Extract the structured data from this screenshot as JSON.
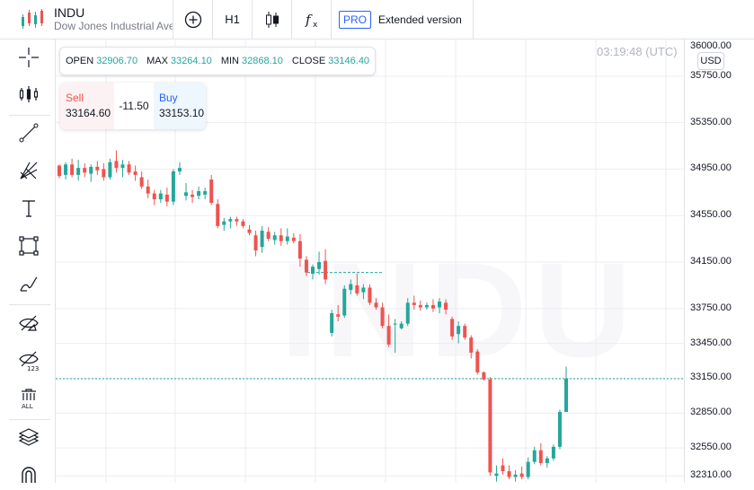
{
  "header": {
    "symbol": "INDU",
    "description": "Dow Jones Industrial Ave",
    "interval": "H1",
    "pro_badge": "PRO",
    "extended_label": "Extended version"
  },
  "toolbar_icons": [
    "crosshair-icon",
    "indicators-icon",
    "trendline-icon",
    "fib-icon",
    "text-icon",
    "rectangle-icon",
    "brush-icon",
    "hide-drawings-icon",
    "hide-indicators-icon",
    "remove-all-icon",
    "layers-icon",
    "magnet-icon"
  ],
  "ohlc": {
    "open_label": "OPEN",
    "open": "32906.70",
    "max_label": "MAX",
    "max": "33264.10",
    "min_label": "MIN",
    "min": "32868.10",
    "close_label": "CLOSE",
    "close": "33146.40"
  },
  "trade": {
    "sell_label": "Sell",
    "sell_price": "33164.60",
    "spread": "-11.50",
    "buy_label": "Buy",
    "buy_price": "33153.10"
  },
  "clock": "03:19:48 (UTC)",
  "currency": "USD",
  "watermark": "INDU",
  "colors": {
    "up": "#26a69a",
    "down": "#ef5350",
    "grid": "#ebedf1"
  },
  "price_axis": [
    "36000.00",
    "35750.00",
    "35350.00",
    "34950.00",
    "34550.00",
    "34150.00",
    "33750.00",
    "33450.00",
    "33150.00",
    "32850.00",
    "32550.00",
    "32310.00"
  ],
  "chart_data": {
    "type": "candlestick",
    "ylim": [
      32250,
      36050
    ],
    "current_price": 33146.4,
    "dashed_level": 34060,
    "candles": [
      [
        34980,
        34990,
        34870,
        34890
      ],
      [
        34900,
        35010,
        34860,
        34990
      ],
      [
        34990,
        35040,
        34880,
        34900
      ],
      [
        34900,
        35030,
        34850,
        34960
      ],
      [
        34960,
        35000,
        34880,
        34920
      ],
      [
        34910,
        34990,
        34840,
        34970
      ],
      [
        34970,
        35020,
        34900,
        34940
      ],
      [
        34950,
        35000,
        34850,
        34880
      ],
      [
        34880,
        35040,
        34860,
        35010
      ],
      [
        35020,
        35110,
        34920,
        34960
      ],
      [
        34960,
        35030,
        34880,
        34990
      ],
      [
        34990,
        35020,
        34900,
        34920
      ],
      [
        34930,
        34980,
        34850,
        34900
      ],
      [
        34880,
        34930,
        34780,
        34800
      ],
      [
        34800,
        34860,
        34700,
        34740
      ],
      [
        34740,
        34770,
        34640,
        34690
      ],
      [
        34690,
        34770,
        34660,
        34740
      ],
      [
        34730,
        34790,
        34630,
        34670
      ],
      [
        34670,
        34950,
        34640,
        34930
      ],
      [
        34930,
        35010,
        34900,
        34960
      ],
      [
        34720,
        34830,
        34680,
        34750
      ],
      [
        34730,
        34770,
        34660,
        34710
      ],
      [
        34720,
        34800,
        34690,
        34760
      ],
      [
        34730,
        34790,
        34690,
        34760
      ],
      [
        34860,
        34900,
        34640,
        34660
      ],
      [
        34650,
        34690,
        34440,
        34460
      ],
      [
        34470,
        34530,
        34420,
        34500
      ],
      [
        34500,
        34540,
        34440,
        34520
      ],
      [
        34520,
        34540,
        34460,
        34500
      ],
      [
        34500,
        34520,
        34440,
        34460
      ],
      [
        34430,
        34470,
        34380,
        34400
      ],
      [
        34380,
        34420,
        34200,
        34250
      ],
      [
        34280,
        34460,
        34230,
        34420
      ],
      [
        34410,
        34450,
        34330,
        34350
      ],
      [
        34340,
        34410,
        34300,
        34380
      ],
      [
        34380,
        34440,
        34290,
        34330
      ],
      [
        34330,
        34440,
        34300,
        34370
      ],
      [
        34360,
        34400,
        34310,
        34330
      ],
      [
        34330,
        34390,
        34110,
        34180
      ],
      [
        34170,
        34200,
        34030,
        34060
      ],
      [
        34050,
        34130,
        34000,
        34110
      ],
      [
        34090,
        34240,
        34040,
        34150
      ],
      [
        34160,
        34260,
        33960,
        34000
      ],
      [
        33540,
        33740,
        33510,
        33710
      ],
      [
        33700,
        33780,
        33640,
        33680
      ],
      [
        33690,
        33950,
        33670,
        33920
      ],
      [
        33910,
        34000,
        33870,
        33960
      ],
      [
        33950,
        34050,
        33860,
        33880
      ],
      [
        33890,
        33960,
        33830,
        33930
      ],
      [
        33930,
        33960,
        33780,
        33800
      ],
      [
        33800,
        33840,
        33740,
        33760
      ],
      [
        33760,
        33800,
        33580,
        33600
      ],
      [
        33600,
        33700,
        33420,
        33440
      ],
      [
        33620,
        33660,
        33370,
        33620
      ],
      [
        33580,
        33640,
        33570,
        33620
      ],
      [
        33620,
        33840,
        33600,
        33800
      ],
      [
        33800,
        33860,
        33740,
        33780
      ],
      [
        33780,
        33820,
        33730,
        33760
      ],
      [
        33760,
        33800,
        33740,
        33780
      ],
      [
        33780,
        33830,
        33720,
        33750
      ],
      [
        33760,
        33840,
        33710,
        33810
      ],
      [
        33800,
        33830,
        33700,
        33740
      ],
      [
        33660,
        33680,
        33480,
        33510
      ],
      [
        33530,
        33640,
        33450,
        33600
      ],
      [
        33600,
        33620,
        33480,
        33500
      ],
      [
        33500,
        33520,
        33320,
        33370
      ],
      [
        33380,
        33400,
        33180,
        33200
      ],
      [
        33200,
        33210,
        33130,
        33140
      ],
      [
        33140,
        33160,
        32310,
        32340
      ],
      [
        32310,
        32400,
        32260,
        32330
      ],
      [
        32400,
        32460,
        32320,
        32350
      ],
      [
        32350,
        32400,
        32280,
        32300
      ],
      [
        32300,
        32360,
        32260,
        32320
      ],
      [
        32330,
        32390,
        32280,
        32300
      ],
      [
        32300,
        32470,
        32280,
        32430
      ],
      [
        32430,
        32560,
        32410,
        32530
      ],
      [
        32530,
        32590,
        32400,
        32420
      ],
      [
        32420,
        32480,
        32380,
        32460
      ],
      [
        32460,
        32580,
        32440,
        32560
      ],
      [
        32560,
        32880,
        32540,
        32860
      ],
      [
        32860,
        33250,
        32860,
        33146
      ]
    ]
  }
}
